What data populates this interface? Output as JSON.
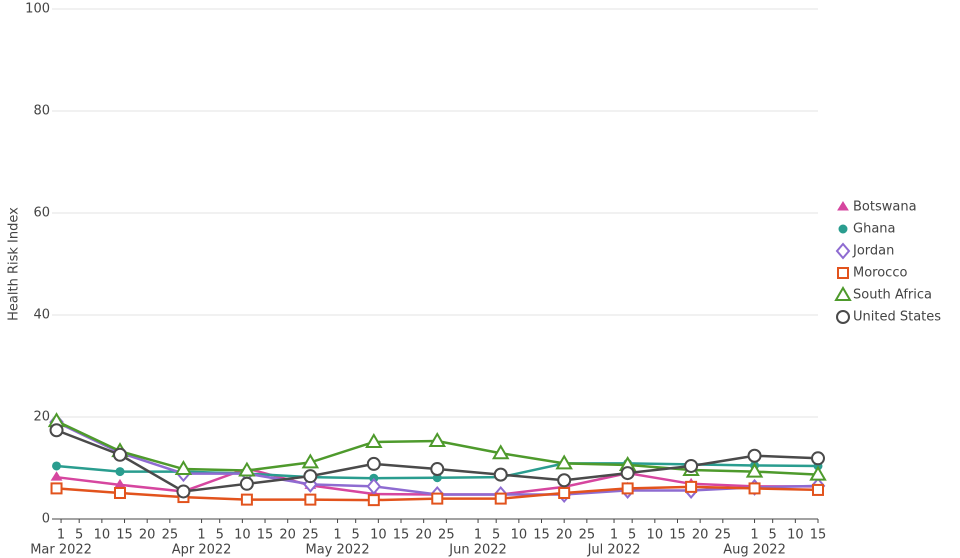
{
  "chart_data": {
    "type": "line",
    "y_label": "Health Risk Index",
    "x": [
      "2022-02-28",
      "2022-03-14",
      "2022-03-28",
      "2022-04-11",
      "2022-04-25",
      "2022-05-09",
      "2022-05-23",
      "2022-06-06",
      "2022-06-20",
      "2022-07-04",
      "2022-07-18",
      "2022-08-01",
      "2022-08-15"
    ],
    "series": [
      {
        "name": "Botswana",
        "color": "#d6469f",
        "marker": "triangle-up",
        "values": [
          8.2,
          6.7,
          5.4,
          9.9,
          6.6,
          4.9,
          4.8,
          4.8,
          6.3,
          9.0,
          6.9,
          6.4,
          6.4
        ]
      },
      {
        "name": "Ghana",
        "color": "#2a9d8f",
        "marker": "circle",
        "values": [
          10.4,
          9.3,
          9.3,
          8.9,
          8.2,
          8.0,
          8.1,
          8.2,
          10.9,
          10.9,
          10.7,
          10.5,
          10.4
        ]
      },
      {
        "name": "Jordan",
        "color": "#8e6bd1",
        "marker": "diamond-open",
        "values": [
          19.0,
          13.0,
          8.9,
          8.9,
          6.8,
          6.4,
          4.8,
          4.8,
          4.8,
          5.6,
          5.6,
          6.2,
          6.5
        ]
      },
      {
        "name": "Morocco",
        "color": "#e2531d",
        "marker": "square-open",
        "values": [
          6.0,
          5.1,
          4.3,
          3.8,
          3.8,
          3.7,
          4.0,
          4.0,
          5.1,
          6.0,
          6.3,
          6.0,
          5.7
        ]
      },
      {
        "name": "South Africa",
        "color": "#4e9a2c",
        "marker": "triangle-up-open",
        "values": [
          19.2,
          13.3,
          9.8,
          9.5,
          11.1,
          15.1,
          15.3,
          12.9,
          10.9,
          10.6,
          9.6,
          9.3,
          8.7
        ]
      },
      {
        "name": "United States",
        "color": "#4a4a4a",
        "marker": "circle-open",
        "values": [
          17.4,
          12.6,
          5.4,
          6.9,
          8.4,
          10.8,
          9.8,
          8.7,
          7.6,
          9.0,
          10.4,
          12.4,
          11.9
        ]
      }
    ],
    "xlim": [
      "2022-02-27",
      "2022-08-15"
    ],
    "xticks": [
      {
        "value": "2022-03-01",
        "label": "1"
      },
      {
        "value": "2022-03-05",
        "label": "5"
      },
      {
        "value": "2022-03-10",
        "label": "10"
      },
      {
        "value": "2022-03-15",
        "label": "15"
      },
      {
        "value": "2022-03-20",
        "label": "20"
      },
      {
        "value": "2022-03-25",
        "label": "25"
      },
      {
        "value": "2022-04-01",
        "label": "1"
      },
      {
        "value": "2022-04-05",
        "label": "5"
      },
      {
        "value": "2022-04-10",
        "label": "10"
      },
      {
        "value": "2022-04-15",
        "label": "15"
      },
      {
        "value": "2022-04-20",
        "label": "20"
      },
      {
        "value": "2022-04-25",
        "label": "25"
      },
      {
        "value": "2022-05-01",
        "label": "1"
      },
      {
        "value": "2022-05-05",
        "label": "5"
      },
      {
        "value": "2022-05-10",
        "label": "10"
      },
      {
        "value": "2022-05-15",
        "label": "15"
      },
      {
        "value": "2022-05-20",
        "label": "20"
      },
      {
        "value": "2022-05-25",
        "label": "25"
      },
      {
        "value": "2022-06-01",
        "label": "1"
      },
      {
        "value": "2022-06-05",
        "label": "5"
      },
      {
        "value": "2022-06-10",
        "label": "10"
      },
      {
        "value": "2022-06-15",
        "label": "15"
      },
      {
        "value": "2022-06-20",
        "label": "20"
      },
      {
        "value": "2022-06-25",
        "label": "25"
      },
      {
        "value": "2022-07-01",
        "label": "1"
      },
      {
        "value": "2022-07-05",
        "label": "5"
      },
      {
        "value": "2022-07-10",
        "label": "10"
      },
      {
        "value": "2022-07-15",
        "label": "15"
      },
      {
        "value": "2022-07-20",
        "label": "20"
      },
      {
        "value": "2022-07-25",
        "label": "25"
      },
      {
        "value": "2022-08-01",
        "label": "1"
      },
      {
        "value": "2022-08-05",
        "label": "5"
      },
      {
        "value": "2022-08-10",
        "label": "10"
      },
      {
        "value": "2022-08-15",
        "label": "15"
      }
    ],
    "xticks_months": [
      {
        "value": "2022-03-01",
        "label": "Mar 2022"
      },
      {
        "value": "2022-04-01",
        "label": "Apr 2022"
      },
      {
        "value": "2022-05-01",
        "label": "May 2022"
      },
      {
        "value": "2022-06-01",
        "label": "Jun 2022"
      },
      {
        "value": "2022-07-01",
        "label": "Jul 2022"
      },
      {
        "value": "2022-08-01",
        "label": "Aug 2022"
      }
    ],
    "ylim": [
      0,
      100
    ],
    "yticks": [
      0,
      20,
      40,
      60,
      80,
      100
    ],
    "grid": true,
    "legend": "right"
  }
}
